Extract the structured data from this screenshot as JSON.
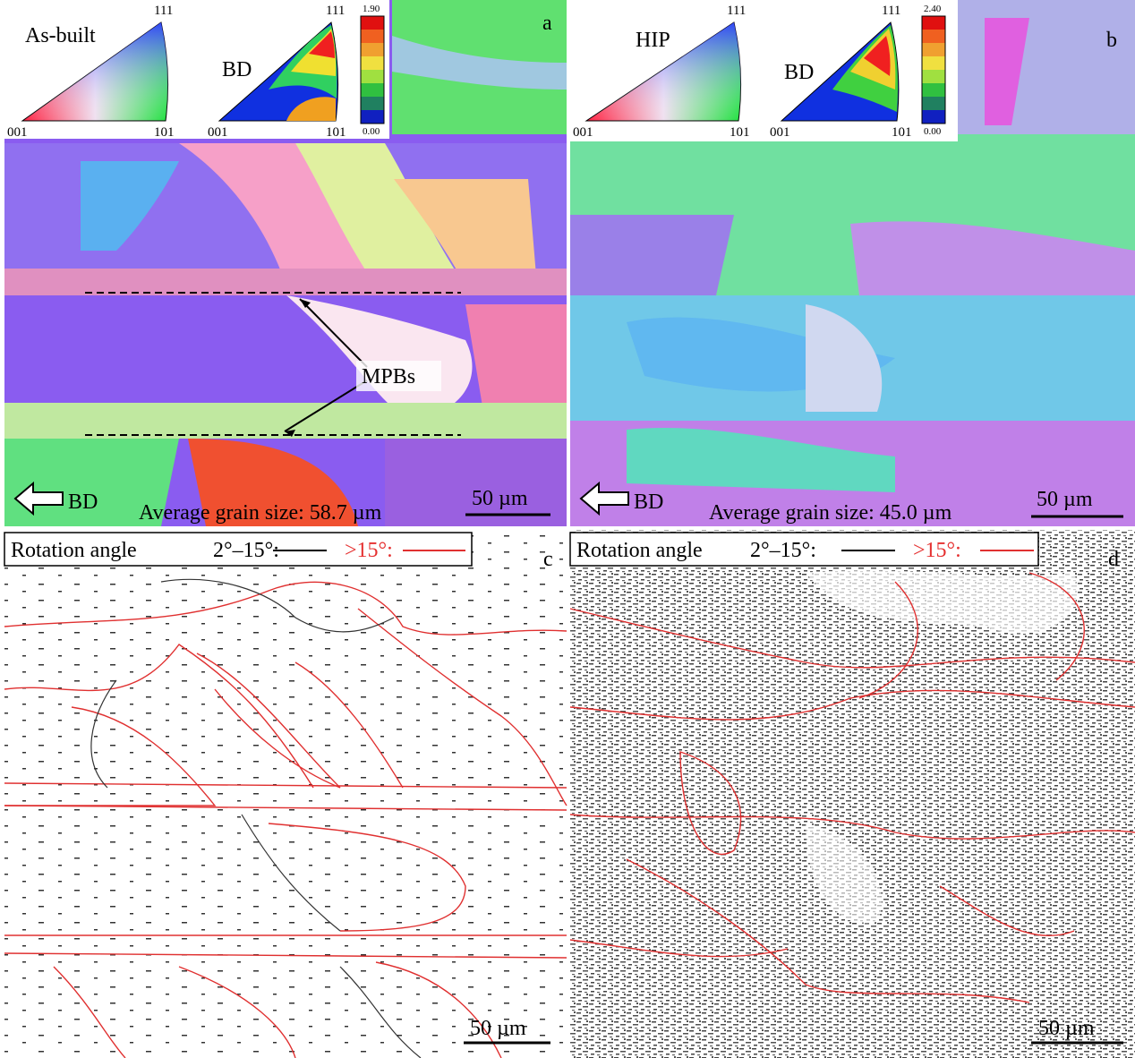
{
  "panels": [
    {
      "label": "a",
      "ipf": {
        "name": "As-built",
        "top": "111",
        "left": "001",
        "right": "101"
      },
      "pole": {
        "direction": "BD",
        "top": "111",
        "left": "001",
        "right": "101",
        "scale_max": "1.90",
        "scale_min": "0.00"
      },
      "annotation": "MPBs",
      "arrow_label": "BD",
      "grain_size": "Average grain size: 58.7 µm",
      "scale_bar": "50 µm"
    },
    {
      "label": "b",
      "ipf": {
        "name": "HIP",
        "top": "111",
        "left": "001",
        "right": "101"
      },
      "pole": {
        "direction": "BD",
        "top": "111",
        "left": "001",
        "right": "101",
        "scale_max": "2.40",
        "scale_min": "0.00"
      },
      "arrow_label": "BD",
      "grain_size": "Average grain size: 45.0 µm",
      "scale_bar": "50 µm"
    },
    {
      "label": "c",
      "legend": {
        "title": "Rotation angle",
        "low": "2°–15°:",
        "high": ">15°:"
      },
      "scale_bar": "50 µm"
    },
    {
      "label": "d",
      "legend": {
        "title": "Rotation angle",
        "low": "2°–15°:",
        "high": ">15°:"
      },
      "scale_bar": "50 µm"
    }
  ]
}
